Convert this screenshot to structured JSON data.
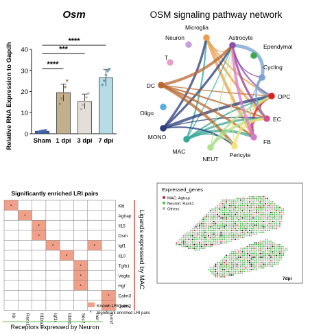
{
  "chart_data": [
    {
      "panel": "bar",
      "type": "bar",
      "title": "Osm",
      "ylabel": "Relative RNA Expression to Gapdh",
      "ylim": [
        0,
        40
      ],
      "yticks": [
        "0",
        "10",
        "20",
        "30",
        "40"
      ],
      "categories": [
        "Sham",
        "1 dpi",
        "3 dpi",
        "7 dpi"
      ],
      "values": [
        1.2,
        19.5,
        15.3,
        26.5
      ],
      "errors": [
        0.4,
        4.0,
        3.5,
        4.0
      ],
      "points": [
        [
          0.8,
          1.0,
          1.2,
          1.4,
          1.5
        ],
        [
          14.0,
          16.5,
          19.0,
          22.0,
          25.0
        ],
        [
          11.5,
          13.5,
          15.0,
          17.0,
          19.0
        ],
        [
          23.0,
          25.0,
          27.5,
          29.5,
          30.5
        ]
      ],
      "colors": {
        "Sham": "#3b5fae",
        "1 dpi": "#c2b08c",
        "3 dpi": "#e3ded8",
        "7 dpi": "#b8dce6"
      },
      "marker_colors": {
        "Sham": "#4a6cb5",
        "1 dpi": "#a08a60",
        "3 dpi": "#bcb3aa",
        "7 dpi": "#5a9cc0"
      },
      "significance": [
        {
          "from": "Sham",
          "to": "1 dpi",
          "label": "****"
        },
        {
          "from": "Sham",
          "to": "3 dpi",
          "label": "***"
        },
        {
          "from": "Sham",
          "to": "7 dpi",
          "label": "****"
        }
      ]
    },
    {
      "panel": "network",
      "type": "network",
      "title": "OSM signaling pathway network",
      "nodes": [
        {
          "name": "Microglia",
          "color": "#e8a050"
        },
        {
          "name": "Astrocyte",
          "color": "#8e4fa8"
        },
        {
          "name": "Ependymal",
          "color": "#3aa84b"
        },
        {
          "name": "Cycling",
          "color": "#7ba5d0"
        },
        {
          "name": "OPC",
          "color": "#e02020"
        },
        {
          "name": "EC",
          "color": "#d54f8f"
        },
        {
          "name": "FB",
          "color": "#d47dc8"
        },
        {
          "name": "Pericyte",
          "color": "#f2e37a"
        },
        {
          "name": "NEUT",
          "color": "#b0e090"
        },
        {
          "name": "MAC",
          "color": "#38a89a"
        },
        {
          "name": "MONO",
          "color": "#2a3c7a"
        },
        {
          "name": "Oligo",
          "color": "#5aaee0"
        },
        {
          "name": "DC",
          "color": "#b86830"
        },
        {
          "name": "T",
          "color": "#e8a0c8"
        },
        {
          "name": "Neuron",
          "color": "#c8a0d8"
        }
      ],
      "edges": [
        [
          "Microglia",
          "Astrocyte"
        ],
        [
          "Microglia",
          "OPC"
        ],
        [
          "Microglia",
          "EC"
        ],
        [
          "Microglia",
          "FB"
        ],
        [
          "Astrocyte",
          "Cycling"
        ],
        [
          "Astrocyte",
          "OPC"
        ],
        [
          "Astrocyte",
          "EC"
        ],
        [
          "Cycling",
          "OPC"
        ],
        [
          "Cycling",
          "FB"
        ],
        [
          "OPC",
          "EC"
        ],
        [
          "OPC",
          "FB"
        ],
        [
          "EC",
          "FB"
        ],
        [
          "MAC",
          "Astrocyte"
        ],
        [
          "MAC",
          "OPC"
        ],
        [
          "MAC",
          "EC"
        ],
        [
          "MAC",
          "FB"
        ],
        [
          "MAC",
          "Pericyte"
        ],
        [
          "MAC",
          "Microglia"
        ],
        [
          "MONO",
          "Astrocyte"
        ],
        [
          "MONO",
          "OPC"
        ],
        [
          "MONO",
          "EC"
        ],
        [
          "MONO",
          "Pericyte"
        ],
        [
          "MONO",
          "Microglia"
        ],
        [
          "DC",
          "Astrocyte"
        ],
        [
          "DC",
          "OPC"
        ],
        [
          "DC",
          "EC"
        ],
        [
          "DC",
          "FB"
        ],
        [
          "DC",
          "Pericyte"
        ],
        [
          "NEUT",
          "Astrocyte"
        ],
        [
          "NEUT",
          "Pericyte"
        ],
        [
          "NEUT",
          "OPC"
        ],
        [
          "NEUT",
          "EC"
        ],
        [
          "Pericyte",
          "Astrocyte"
        ],
        [
          "Pericyte",
          "OPC"
        ],
        [
          "Pericyte",
          "EC"
        ],
        [
          "FB",
          "Astrocyte"
        ],
        [
          "EC",
          "Astrocyte"
        ],
        [
          "Cycling",
          "EC"
        ]
      ]
    },
    {
      "panel": "lri-matrix",
      "type": "heatmap",
      "title": "Significantly enriched LRI pairs",
      "ylabel": "Ligands expressed by MAC",
      "xlabel": "Receptors expressed by Neuron",
      "rows": [
        "Kitl",
        "Agtrap",
        "Il15",
        "Osm",
        "Igf1",
        "Il10",
        "Tgfb1",
        "Vegfa",
        "Hgf",
        "Calm3",
        "Calm2"
      ],
      "cols": [
        "Kit",
        "Rack1",
        "Il11ra1",
        "Igf1r",
        "Il10rb",
        "Sdc2",
        "Insr",
        "Grm7"
      ],
      "cells": [
        [
          0,
          0
        ],
        [
          1,
          1
        ],
        [
          2,
          2
        ],
        [
          3,
          2
        ],
        [
          4,
          3
        ],
        [
          5,
          4
        ],
        [
          4,
          6
        ],
        [
          6,
          5
        ],
        [
          7,
          5
        ],
        [
          8,
          5
        ],
        [
          9,
          7
        ],
        [
          10,
          7
        ]
      ],
      "cell_color": "#f0a088",
      "legend": [
        "Known LRI pairs",
        "Significant enriched LRI pairs"
      ]
    },
    {
      "panel": "spatial",
      "type": "scatter",
      "title": "Expressed_genes",
      "corner_label": "7dpi",
      "legend": [
        {
          "label": "MAC: Agtrap",
          "color": "#d42030"
        },
        {
          "label": "Neuron: Rack1",
          "color": "#40c040"
        },
        {
          "label": "Others",
          "color": "#b0b0b0"
        }
      ]
    }
  ]
}
